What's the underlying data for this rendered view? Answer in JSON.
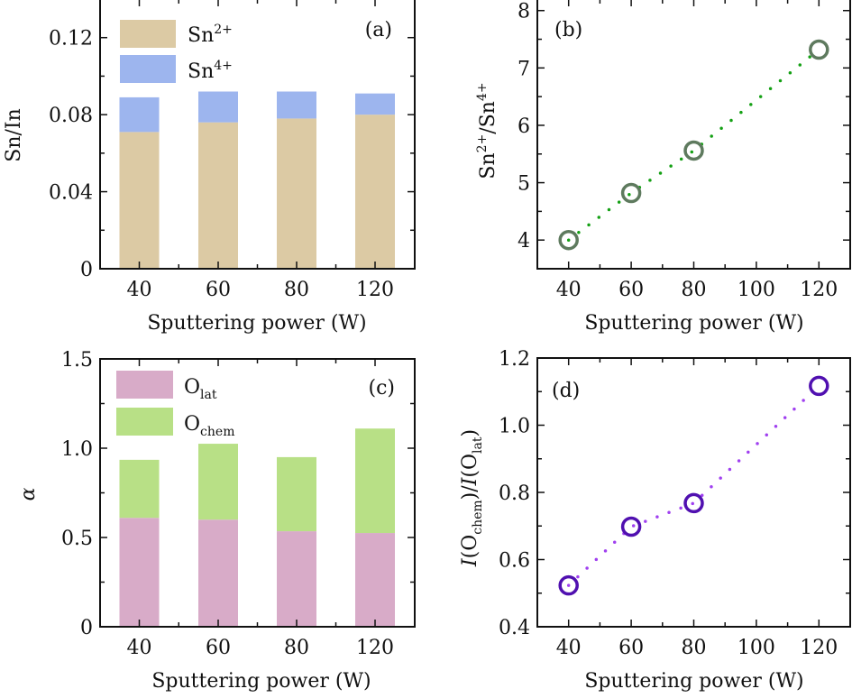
{
  "chart_data": [
    {
      "panel": "(a)",
      "type": "bar",
      "stacked": true,
      "categories": [
        "40",
        "60",
        "80",
        "120"
      ],
      "series": [
        {
          "name": "Sn2+",
          "label_base": "Sn",
          "label_sup": "2+",
          "color": "#dccaa4",
          "values": [
            0.071,
            0.076,
            0.078,
            0.08
          ]
        },
        {
          "name": "Sn4+",
          "label_base": "Sn",
          "label_sup": "4+",
          "color": "#9db5ee",
          "values": [
            0.018,
            0.016,
            0.014,
            0.011
          ]
        }
      ],
      "totals": [
        0.089,
        0.092,
        0.092,
        0.091
      ],
      "xlabel": "Sputtering power (W)",
      "ylabel": "Sn/In",
      "ylim": [
        0,
        0.14
      ],
      "yticks": [
        0,
        0.04,
        0.08,
        0.12
      ],
      "ytick_labels": [
        "0",
        "0.04",
        "0.08",
        "0.12"
      ],
      "legend": "top-left",
      "grid": false
    },
    {
      "panel": "(b)",
      "type": "scatter",
      "x": [
        40,
        60,
        80,
        120
      ],
      "series": [
        {
          "name": "Sn2+/Sn4+",
          "marker": "open-circle",
          "marker_color": "#5e7a5e",
          "line_style": "dotted",
          "line_color": "#14a014",
          "values": [
            4.0,
            4.82,
            5.56,
            7.32
          ]
        }
      ],
      "xlabel": "Sputtering power (W)",
      "ylabel_parts": {
        "a_base": "Sn",
        "a_sup": "2+",
        "sep": "/",
        "b_base": "Sn",
        "b_sup": "4+"
      },
      "xlim": [
        30,
        130
      ],
      "ylim": [
        3.5,
        8.2
      ],
      "xticks": [
        40,
        60,
        80,
        100,
        120
      ],
      "xtick_labels": [
        "40",
        "60",
        "80",
        "100",
        "120"
      ],
      "yticks": [
        4,
        5,
        6,
        7,
        8
      ],
      "ytick_labels": [
        "4",
        "5",
        "6",
        "7",
        "8"
      ],
      "grid": false
    },
    {
      "panel": "(c)",
      "type": "bar",
      "stacked": true,
      "categories": [
        "40",
        "60",
        "80",
        "120"
      ],
      "series": [
        {
          "name": "Olat",
          "label_base": "O",
          "label_sub": "lat",
          "color": "#d8abc8",
          "values": [
            0.61,
            0.6,
            0.535,
            0.525
          ]
        },
        {
          "name": "Ochem",
          "label_base": "O",
          "label_sub": "chem",
          "color": "#b8e086",
          "values": [
            0.325,
            0.425,
            0.415,
            0.585
          ]
        }
      ],
      "totals": [
        0.935,
        1.025,
        0.95,
        1.11
      ],
      "xlabel": "Sputtering power (W)",
      "ylabel": "α",
      "ylim": [
        0,
        1.5
      ],
      "yticks": [
        0,
        0.5,
        1.0,
        1.5
      ],
      "ytick_labels": [
        "0",
        "0.5",
        "1.0",
        "1.5"
      ],
      "legend": "top-left",
      "grid": false
    },
    {
      "panel": "(d)",
      "type": "scatter",
      "x": [
        40,
        60,
        80,
        120
      ],
      "series": [
        {
          "name": "I(Ochem)/I(Olat)",
          "marker": "open-circle",
          "marker_color": "#5010b0",
          "line_style": "dotted",
          "line_color": "#a040f0",
          "values": [
            0.523,
            0.698,
            0.768,
            1.117
          ]
        }
      ],
      "xlabel": "Sputtering power (W)",
      "ylabel_parts": {
        "i1": "I",
        "o1": "(O",
        "s1": "chem",
        "c1": ")/",
        "i2": "I",
        "o2": "(O",
        "s2": "lat",
        "c2": ")"
      },
      "xlim": [
        30,
        130
      ],
      "ylim": [
        0.4,
        1.2
      ],
      "xticks": [
        40,
        60,
        80,
        100,
        120
      ],
      "xtick_labels": [
        "40",
        "60",
        "80",
        "100",
        "120"
      ],
      "yticks": [
        0.4,
        0.6,
        0.8,
        1.0,
        1.2
      ],
      "ytick_labels": [
        "0.4",
        "0.6",
        "0.8",
        "1.0",
        "1.2"
      ],
      "grid": false
    }
  ]
}
